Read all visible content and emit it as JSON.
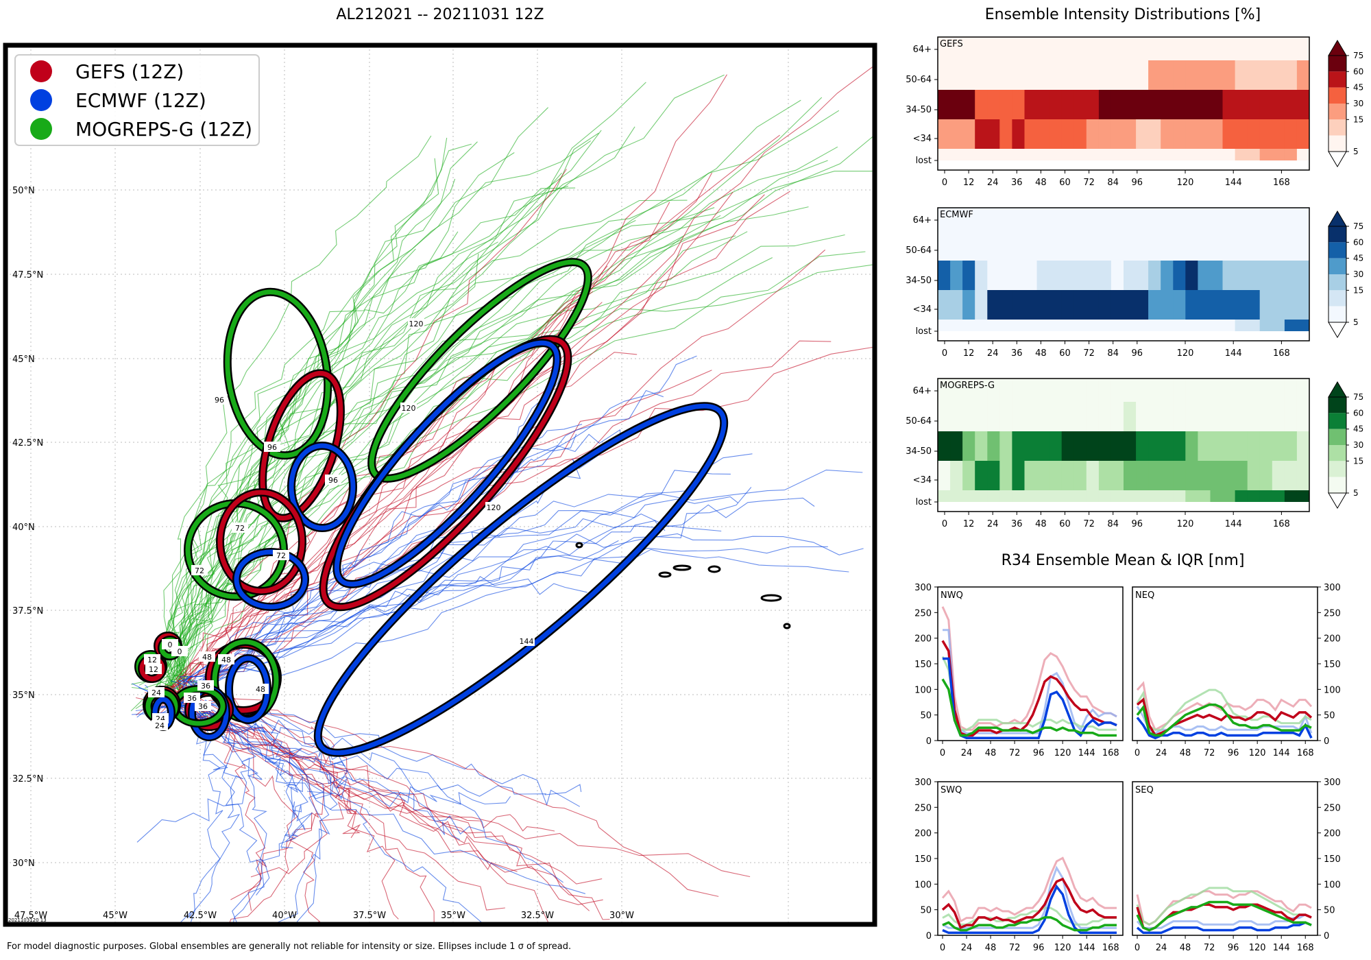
{
  "main_title": "AL212021 -- 20211031 12Z",
  "footer": "For model diagnostic purposes. Global ensembles are generally not reliable for intensity or size. Ellipses include 1 σ of spread.",
  "stamp": "2021103120 13",
  "colors": {
    "gefs": "#c0001a",
    "ecmwf": "#0040e0",
    "mogreps": "#18aa18"
  },
  "map": {
    "lat_labels": [
      "50°N",
      "47.5°N",
      "45°N",
      "42.5°N",
      "40°N",
      "37.5°N",
      "35°N",
      "32.5°N",
      "30°N"
    ],
    "lon_labels": [
      "47.5°W",
      "45°W",
      "42.5°W",
      "40°W",
      "37.5°W",
      "35°W",
      "32.5°W",
      "30°W"
    ],
    "legend": [
      "GEFS (12Z)",
      "ECMWF (12Z)",
      "MOGREPS-G (12Z)"
    ],
    "ellipse_labels": [
      "0",
      "12",
      "24",
      "36",
      "48",
      "72",
      "96",
      "120",
      "144"
    ]
  },
  "intensity": {
    "title": "Ensemble Intensity Distributions [%]",
    "y_labels": [
      "64+",
      "50-64",
      "34-50",
      "<34",
      "lost"
    ],
    "x_ticks": [
      "0",
      "12",
      "24",
      "36",
      "48",
      "60",
      "72",
      "84",
      "96",
      "120",
      "144",
      "168"
    ],
    "cbar_ticks": [
      "75",
      "60",
      "45",
      "30",
      "15",
      "5"
    ],
    "panels": [
      "GEFS",
      "ECMWF",
      "MOGREPS-G"
    ]
  },
  "r34": {
    "title": "R34 Ensemble Mean & IQR [nm]",
    "panels": [
      "NWQ",
      "NEQ",
      "SWQ",
      "SEQ"
    ],
    "y_ticks": [
      "300",
      "250",
      "200",
      "150",
      "100",
      "50",
      "0"
    ],
    "x_ticks": [
      "0",
      "24",
      "48",
      "72",
      "96",
      "120",
      "144",
      "168"
    ]
  },
  "chart_data": [
    {
      "type": "heatmap",
      "title": "GEFS",
      "rows": [
        "lost",
        "<34",
        "34-50",
        "50-64",
        "64+"
      ],
      "columns_hours": [
        0,
        6,
        12,
        18,
        24,
        30,
        36,
        42,
        48,
        54,
        60,
        66,
        72,
        78,
        84,
        90,
        96,
        102,
        108,
        114,
        120,
        126,
        132,
        138,
        144,
        150,
        156,
        162,
        168,
        174
      ],
      "values": [
        [
          0,
          0,
          0,
          0,
          0,
          0,
          0,
          0,
          0,
          0,
          0,
          0,
          0,
          0,
          0,
          0,
          0,
          0,
          0,
          0,
          0,
          0,
          0,
          0,
          10,
          10,
          20,
          20,
          20,
          0
        ],
        [
          15,
          15,
          15,
          50,
          50,
          35,
          50,
          35,
          35,
          35,
          35,
          35,
          25,
          25,
          25,
          25,
          5,
          5,
          15,
          15,
          15,
          25,
          25,
          35,
          40,
          40,
          40,
          40,
          40,
          40
        ],
        [
          80,
          80,
          60,
          40,
          40,
          40,
          40,
          55,
          55,
          55,
          55,
          55,
          55,
          70,
          70,
          70,
          70,
          60,
          70,
          60,
          70,
          70,
          60,
          50,
          45,
          45,
          45,
          45,
          45,
          45
        ],
        [
          0,
          0,
          0,
          0,
          0,
          0,
          0,
          0,
          0,
          0,
          0,
          0,
          0,
          0,
          0,
          0,
          0,
          25,
          25,
          25,
          15,
          15,
          15,
          15,
          5,
          5,
          5,
          5,
          5,
          15
        ],
        [
          0,
          0,
          0,
          0,
          0,
          0,
          0,
          0,
          0,
          0,
          0,
          0,
          0,
          0,
          0,
          0,
          0,
          0,
          0,
          0,
          0,
          0,
          0,
          0,
          0,
          0,
          0,
          0,
          0,
          0
        ]
      ],
      "cbar_levels": [
        5,
        15,
        30,
        45,
        60,
        75
      ]
    },
    {
      "type": "heatmap",
      "title": "ECMWF",
      "rows": [
        "lost",
        "<34",
        "34-50",
        "50-64",
        "64+"
      ],
      "columns_hours": [
        0,
        6,
        12,
        18,
        24,
        30,
        36,
        42,
        48,
        54,
        60,
        66,
        72,
        78,
        84,
        90,
        96,
        102,
        108,
        114,
        120,
        126,
        132,
        138,
        144,
        150,
        156,
        162,
        168,
        174
      ],
      "values": [
        [
          0,
          0,
          0,
          0,
          0,
          0,
          0,
          0,
          0,
          0,
          0,
          0,
          0,
          0,
          0,
          0,
          0,
          0,
          0,
          0,
          0,
          0,
          0,
          0,
          10,
          10,
          15,
          15,
          55,
          55
        ],
        [
          25,
          25,
          40,
          10,
          90,
          90,
          90,
          90,
          90,
          90,
          90,
          90,
          90,
          90,
          90,
          90,
          90,
          30,
          30,
          30,
          45,
          45,
          45,
          45,
          45,
          45,
          25,
          25,
          25,
          25
        ],
        [
          55,
          40,
          55,
          10,
          0,
          0,
          0,
          0,
          10,
          10,
          10,
          10,
          10,
          10,
          0,
          10,
          10,
          25,
          40,
          55,
          85,
          40,
          35,
          25,
          25,
          25,
          25,
          25,
          25,
          15
        ],
        [
          0,
          0,
          0,
          0,
          0,
          0,
          0,
          0,
          0,
          0,
          0,
          0,
          0,
          0,
          0,
          0,
          0,
          0,
          0,
          0,
          0,
          0,
          0,
          0,
          0,
          0,
          0,
          0,
          0,
          0
        ],
        [
          0,
          0,
          0,
          0,
          0,
          0,
          0,
          0,
          0,
          0,
          0,
          0,
          0,
          0,
          0,
          0,
          0,
          0,
          0,
          0,
          0,
          0,
          0,
          0,
          0,
          0,
          0,
          0,
          0,
          0
        ]
      ],
      "cbar_levels": [
        5,
        15,
        30,
        45,
        60,
        75
      ]
    },
    {
      "type": "heatmap",
      "title": "MOGREPS-G",
      "rows": [
        "lost",
        "<34",
        "34-50",
        "50-64",
        "64+"
      ],
      "columns_hours": [
        0,
        6,
        12,
        18,
        24,
        30,
        36,
        42,
        48,
        54,
        60,
        66,
        72,
        78,
        84,
        90,
        96,
        102,
        108,
        114,
        120,
        126,
        132,
        138,
        144,
        150,
        156,
        162,
        168,
        174
      ],
      "values": [
        [
          5,
          5,
          5,
          5,
          5,
          5,
          5,
          5,
          5,
          5,
          5,
          5,
          5,
          5,
          5,
          5,
          5,
          5,
          5,
          5,
          15,
          15,
          30,
          30,
          45,
          45,
          55,
          55,
          80,
          80
        ],
        [
          0,
          10,
          25,
          55,
          55,
          25,
          55,
          15,
          25,
          25,
          25,
          25,
          10,
          25,
          25,
          35,
          35,
          35,
          35,
          35,
          35,
          35,
          35,
          35,
          35,
          20,
          20,
          5,
          5,
          5
        ],
        [
          85,
          85,
          30,
          15,
          30,
          20,
          45,
          55,
          55,
          55,
          70,
          70,
          80,
          80,
          80,
          80,
          55,
          55,
          55,
          55,
          35,
          20,
          20,
          15,
          15,
          15,
          15,
          15,
          15,
          5
        ],
        [
          0,
          0,
          0,
          0,
          0,
          0,
          0,
          0,
          0,
          0,
          0,
          0,
          0,
          0,
          0,
          10,
          0,
          0,
          0,
          0,
          0,
          0,
          0,
          0,
          0,
          0,
          0,
          0,
          0,
          0
        ],
        [
          0,
          0,
          0,
          0,
          0,
          0,
          0,
          0,
          0,
          0,
          0,
          0,
          0,
          0,
          0,
          0,
          0,
          0,
          0,
          0,
          0,
          0,
          0,
          0,
          0,
          0,
          0,
          0,
          0,
          0
        ]
      ],
      "cbar_levels": [
        5,
        15,
        30,
        45,
        60,
        75
      ]
    },
    {
      "type": "line",
      "title": "NWQ",
      "x": [
        0,
        6,
        12,
        18,
        24,
        30,
        36,
        42,
        48,
        54,
        60,
        66,
        72,
        78,
        84,
        90,
        96,
        102,
        108,
        114,
        120,
        126,
        132,
        138,
        144,
        150,
        156,
        162,
        168,
        174
      ],
      "ylim": [
        0,
        300
      ],
      "series": [
        {
          "name": "GEFS",
          "values": [
            195,
            175,
            60,
            15,
            10,
            10,
            20,
            20,
            20,
            15,
            20,
            20,
            25,
            20,
            30,
            50,
            80,
            115,
            125,
            120,
            105,
            85,
            70,
            60,
            60,
            45,
            40,
            35,
            35,
            30
          ]
        },
        {
          "name": "ECMWF",
          "values": [
            160,
            160,
            40,
            10,
            5,
            5,
            5,
            5,
            5,
            5,
            5,
            5,
            5,
            5,
            5,
            5,
            5,
            40,
            90,
            95,
            80,
            50,
            20,
            10,
            30,
            40,
            30,
            35,
            35,
            30
          ]
        },
        {
          "name": "MOGREPS-G",
          "values": [
            120,
            100,
            40,
            10,
            10,
            15,
            25,
            25,
            25,
            25,
            20,
            20,
            20,
            20,
            20,
            15,
            20,
            25,
            25,
            20,
            25,
            20,
            20,
            15,
            15,
            15,
            10,
            10,
            10,
            10
          ]
        }
      ]
    },
    {
      "type": "line",
      "title": "NEQ",
      "x": [
        0,
        6,
        12,
        18,
        24,
        30,
        36,
        42,
        48,
        54,
        60,
        66,
        72,
        78,
        84,
        90,
        96,
        102,
        108,
        114,
        120,
        126,
        132,
        138,
        144,
        150,
        156,
        162,
        168,
        174
      ],
      "ylim": [
        0,
        300
      ],
      "series": [
        {
          "name": "GEFS",
          "values": [
            70,
            80,
            30,
            10,
            15,
            20,
            30,
            35,
            40,
            45,
            50,
            45,
            50,
            45,
            40,
            50,
            45,
            45,
            40,
            45,
            55,
            55,
            50,
            40,
            55,
            50,
            45,
            55,
            55,
            45
          ]
        },
        {
          "name": "ECMWF",
          "values": [
            45,
            30,
            10,
            5,
            10,
            10,
            15,
            15,
            10,
            10,
            15,
            15,
            10,
            10,
            15,
            10,
            10,
            10,
            10,
            10,
            10,
            15,
            15,
            15,
            15,
            15,
            15,
            10,
            30,
            5
          ]
        },
        {
          "name": "MOGREPS-G",
          "values": [
            50,
            65,
            15,
            10,
            10,
            20,
            30,
            40,
            50,
            55,
            60,
            65,
            70,
            70,
            65,
            50,
            35,
            30,
            30,
            25,
            25,
            30,
            30,
            25,
            20,
            20,
            20,
            20,
            30,
            25
          ]
        }
      ]
    },
    {
      "type": "line",
      "title": "SWQ",
      "x": [
        0,
        6,
        12,
        18,
        24,
        30,
        36,
        42,
        48,
        54,
        60,
        66,
        72,
        78,
        84,
        90,
        96,
        102,
        108,
        114,
        120,
        126,
        132,
        138,
        144,
        150,
        156,
        162,
        168,
        174
      ],
      "ylim": [
        0,
        300
      ],
      "series": [
        {
          "name": "GEFS",
          "values": [
            50,
            60,
            45,
            15,
            20,
            20,
            35,
            35,
            30,
            35,
            30,
            30,
            25,
            30,
            35,
            35,
            45,
            60,
            85,
            105,
            110,
            90,
            65,
            50,
            45,
            50,
            40,
            35,
            35,
            35
          ]
        },
        {
          "name": "ECMWF",
          "values": [
            10,
            5,
            5,
            5,
            5,
            5,
            5,
            5,
            5,
            5,
            5,
            5,
            5,
            5,
            5,
            5,
            10,
            30,
            70,
            95,
            80,
            40,
            15,
            5,
            5,
            5,
            5,
            5,
            5,
            5
          ]
        },
        {
          "name": "MOGREPS-G",
          "values": [
            20,
            25,
            15,
            10,
            10,
            15,
            20,
            20,
            20,
            15,
            15,
            20,
            20,
            25,
            25,
            30,
            30,
            35,
            35,
            30,
            20,
            15,
            10,
            10,
            10,
            15,
            15,
            20,
            20,
            20
          ]
        }
      ]
    },
    {
      "type": "line",
      "title": "SEQ",
      "x": [
        0,
        6,
        12,
        18,
        24,
        30,
        36,
        42,
        48,
        54,
        60,
        66,
        72,
        78,
        84,
        90,
        96,
        102,
        108,
        114,
        120,
        126,
        132,
        138,
        144,
        150,
        156,
        162,
        168,
        174
      ],
      "ylim": [
        0,
        300
      ],
      "series": [
        {
          "name": "GEFS",
          "values": [
            55,
            15,
            10,
            15,
            25,
            35,
            45,
            45,
            50,
            50,
            55,
            60,
            60,
            55,
            55,
            55,
            50,
            55,
            55,
            60,
            60,
            55,
            50,
            45,
            45,
            35,
            30,
            40,
            40,
            35
          ]
        },
        {
          "name": "ECMWF",
          "values": [
            15,
            5,
            5,
            5,
            5,
            10,
            15,
            15,
            15,
            15,
            15,
            10,
            10,
            10,
            10,
            10,
            10,
            15,
            15,
            15,
            10,
            10,
            10,
            15,
            15,
            15,
            20,
            20,
            25,
            20
          ]
        },
        {
          "name": "MOGREPS-G",
          "values": [
            40,
            15,
            10,
            15,
            25,
            35,
            40,
            45,
            50,
            55,
            55,
            60,
            65,
            65,
            65,
            65,
            60,
            60,
            60,
            60,
            55,
            50,
            45,
            40,
            35,
            30,
            25,
            25,
            25,
            20
          ]
        }
      ]
    }
  ]
}
